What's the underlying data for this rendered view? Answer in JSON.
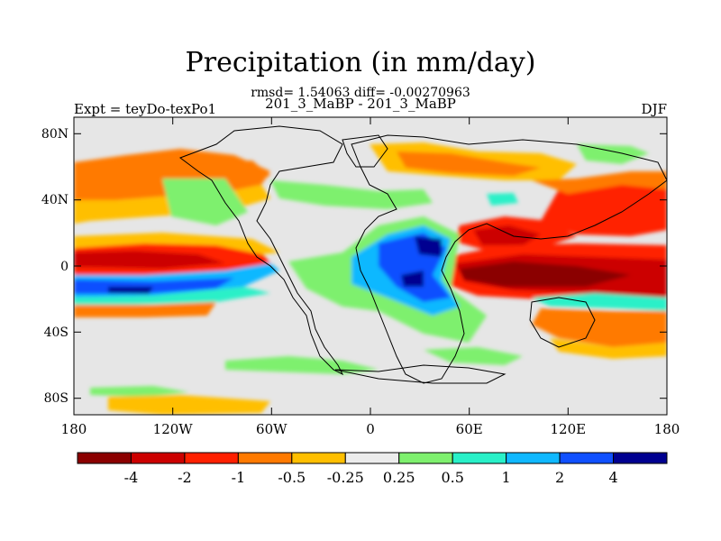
{
  "title": "Precipitation (in mm/day)",
  "stats_line": "rmsd= 1.54063 diff= -0.00270963",
  "comparison": "201_3_MaBP - 201_3_MaBP",
  "experiment": "Expt = teyDo-texPo1",
  "season": "DJF",
  "map": {
    "lon_range": [
      -180,
      180
    ],
    "lat_range": [
      -90,
      90
    ],
    "x_tick_labels": [
      "180",
      "120W",
      "60W",
      "0",
      "60E",
      "120E",
      "180"
    ],
    "y_tick_labels": [
      "80N",
      "40N",
      "0",
      "40S",
      "80S"
    ],
    "background_color": "#e6e6e6"
  },
  "colorbar": {
    "colors": [
      "#8b0000",
      "#cc0000",
      "#ff2000",
      "#ff7a00",
      "#ffbf00",
      "#ececec",
      "#7ef06e",
      "#29f0c8",
      "#10b8ff",
      "#1050ff",
      "#000090"
    ],
    "labels": [
      "-4",
      "-2",
      "-1",
      "-0.5",
      "-0.25",
      "0.25",
      "0.5",
      "1",
      "2",
      "4"
    ]
  },
  "palette": {
    "neg_strong": "#8b0000",
    "neg": "#cc0000",
    "neg_mid": "#ff2000",
    "neg_light": "#ff7a00",
    "neg_faint": "#ffbf00",
    "neutral": "#e6e6e6",
    "pos_faint": "#7ef06e",
    "pos_light": "#29f0c8",
    "pos_mid": "#10b8ff",
    "pos": "#1050ff",
    "pos_strong": "#000090"
  }
}
